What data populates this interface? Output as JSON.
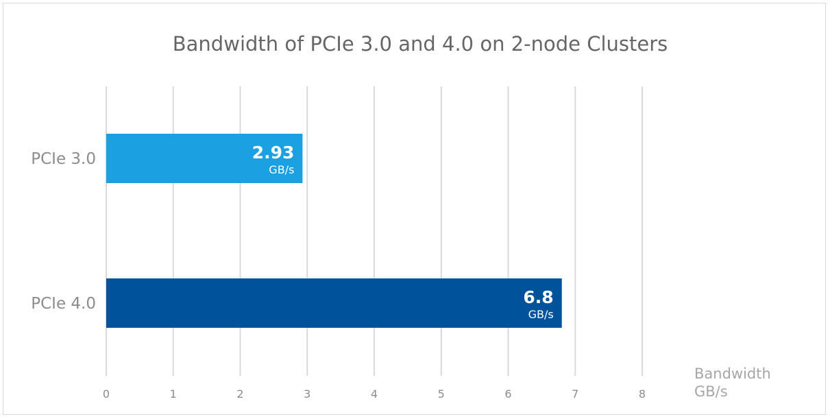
{
  "chart_data": {
    "type": "bar",
    "orientation": "horizontal",
    "title": "Bandwidth of PCIe 3.0 and 4.0 on 2-node Clusters",
    "categories": [
      "PCIe 3.0",
      "PCIe 4.0"
    ],
    "values": [
      2.93,
      6.8
    ],
    "value_labels": [
      "2.93",
      "6.8"
    ],
    "value_unit": "GB/s",
    "bar_colors": [
      "#1ba1e2",
      "#00539b"
    ],
    "xlabel": [
      "Bandwidth",
      "GB/s"
    ],
    "ylabel": "",
    "xlim": [
      0,
      8
    ],
    "xticks": [
      "0",
      "1",
      "2",
      "3",
      "4",
      "5",
      "6",
      "7",
      "8"
    ],
    "grid": true,
    "legend": "none"
  }
}
